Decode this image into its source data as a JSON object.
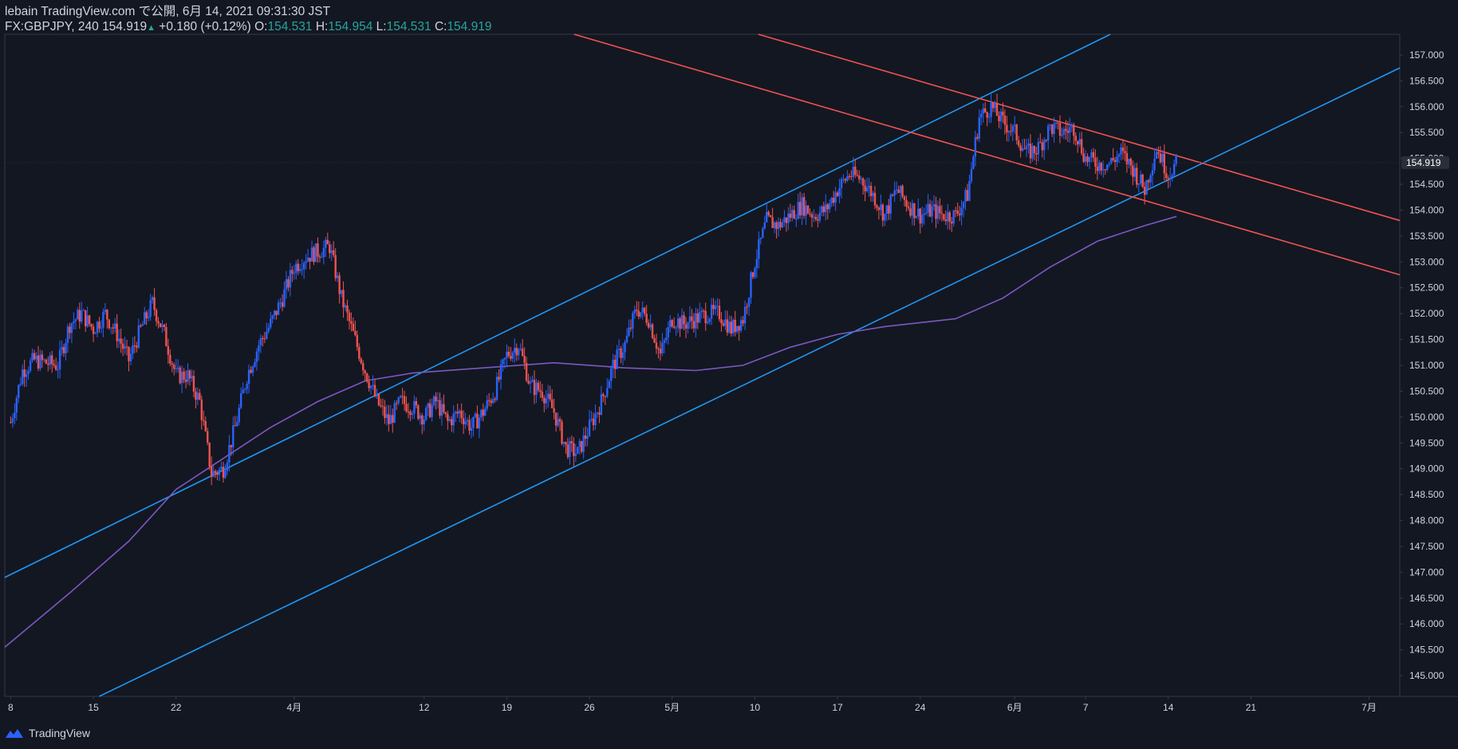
{
  "header": {
    "publisher": "lebain TradingView.com で公開, 6月 14, 2021 09:31:30 JST",
    "symbol": "FX:GBPJPY, 240",
    "last": "154.919",
    "change_arrow": "▲",
    "change": "+0.180 (+0.12%)",
    "o_label": "O:",
    "o_value": "154.531",
    "h_label": "H:",
    "h_value": "154.954",
    "l_label": "L:",
    "l_value": "154.531",
    "c_label": "C:",
    "c_value": "154.919"
  },
  "footer": {
    "brand": "TradingView"
  },
  "colors": {
    "background": "#131722",
    "up": "#2962ff",
    "down": "#ef5350",
    "channel_up": "#2196f3",
    "channel_down": "#f05350",
    "ma": "#7e57c2",
    "text": "#d1d4dc",
    "teal": "#26a69a"
  },
  "chart_data": {
    "type": "candlestick",
    "symbol": "FX:GBPJPY",
    "interval": "240",
    "last_price": 154.919,
    "last_price_label": "154.919",
    "ylim": [
      144.6,
      157.4
    ],
    "y_ticks": [
      "145.000",
      "145.500",
      "146.000",
      "146.500",
      "147.000",
      "147.500",
      "148.000",
      "148.500",
      "149.000",
      "149.500",
      "150.000",
      "150.500",
      "151.000",
      "151.500",
      "152.000",
      "152.500",
      "153.000",
      "153.500",
      "154.000",
      "154.500",
      "155.000",
      "155.500",
      "156.000",
      "156.500",
      "157.000"
    ],
    "x_ticks": [
      {
        "label": "8",
        "day": 0
      },
      {
        "label": "15",
        "day": 7
      },
      {
        "label": "22",
        "day": 14
      },
      {
        "label": "4月",
        "day": 24
      },
      {
        "label": "12",
        "day": 35
      },
      {
        "label": "19",
        "day": 42
      },
      {
        "label": "26",
        "day": 49
      },
      {
        "label": "5月",
        "day": 56
      },
      {
        "label": "10",
        "day": 63
      },
      {
        "label": "17",
        "day": 70
      },
      {
        "label": "24",
        "day": 77
      },
      {
        "label": "6月",
        "day": 85
      },
      {
        "label": "7",
        "day": 91
      },
      {
        "label": "14",
        "day": 98
      },
      {
        "label": "21",
        "day": 105
      },
      {
        "label": "7月",
        "day": 115
      }
    ],
    "x_range_days": [
      -0.5,
      117.6
    ],
    "price_path": [
      [
        0,
        149.9
      ],
      [
        1,
        150.9
      ],
      [
        2,
        151.1
      ],
      [
        4,
        151.0
      ],
      [
        5,
        151.8
      ],
      [
        6,
        152.0
      ],
      [
        7,
        151.7
      ],
      [
        8,
        152.0
      ],
      [
        9,
        151.6
      ],
      [
        10,
        151.1
      ],
      [
        11,
        151.7
      ],
      [
        12,
        152.2
      ],
      [
        13,
        151.6
      ],
      [
        14,
        150.8
      ],
      [
        15,
        150.8
      ],
      [
        16,
        150.3
      ],
      [
        17,
        148.9
      ],
      [
        18,
        149.0
      ],
      [
        19,
        149.8
      ],
      [
        20,
        150.8
      ],
      [
        21,
        151.4
      ],
      [
        22,
        151.8
      ],
      [
        23,
        152.3
      ],
      [
        24,
        152.9
      ],
      [
        25,
        153.1
      ],
      [
        26,
        153.2
      ],
      [
        27,
        153.3
      ],
      [
        28,
        152.3
      ],
      [
        29,
        151.6
      ],
      [
        30,
        150.9
      ],
      [
        31,
        150.3
      ],
      [
        32,
        149.9
      ],
      [
        33,
        150.3
      ],
      [
        34,
        150.2
      ],
      [
        35,
        150.0
      ],
      [
        36,
        150.3
      ],
      [
        37,
        149.9
      ],
      [
        38,
        150.1
      ],
      [
        39,
        149.8
      ],
      [
        40,
        150.1
      ],
      [
        41,
        150.5
      ],
      [
        42,
        151.2
      ],
      [
        43,
        151.4
      ],
      [
        44,
        150.6
      ],
      [
        45,
        150.5
      ],
      [
        46,
        150.1
      ],
      [
        47,
        149.4
      ],
      [
        48,
        149.3
      ],
      [
        49,
        149.8
      ],
      [
        50,
        150.3
      ],
      [
        51,
        151.0
      ],
      [
        52,
        151.4
      ],
      [
        53,
        152.1
      ],
      [
        54,
        151.9
      ],
      [
        55,
        151.2
      ],
      [
        56,
        151.9
      ],
      [
        57,
        151.8
      ],
      [
        58,
        151.9
      ],
      [
        59,
        152.0
      ],
      [
        60,
        152.0
      ],
      [
        61,
        151.7
      ],
      [
        62,
        151.9
      ],
      [
        63,
        153.0
      ],
      [
        64,
        153.8
      ],
      [
        65,
        153.7
      ],
      [
        66,
        153.9
      ],
      [
        67,
        154.1
      ],
      [
        68,
        153.9
      ],
      [
        69,
        154.0
      ],
      [
        70,
        154.4
      ],
      [
        71,
        154.7
      ],
      [
        72,
        154.6
      ],
      [
        73,
        154.3
      ],
      [
        74,
        153.9
      ],
      [
        75,
        154.4
      ],
      [
        76,
        154.1
      ],
      [
        77,
        153.9
      ],
      [
        78,
        154.0
      ],
      [
        79,
        153.9
      ],
      [
        80,
        153.9
      ],
      [
        81,
        154.3
      ],
      [
        82,
        155.8
      ],
      [
        83,
        156.0
      ],
      [
        84,
        155.7
      ],
      [
        85,
        155.5
      ],
      [
        86,
        155.1
      ],
      [
        87,
        155.2
      ],
      [
        88,
        155.6
      ],
      [
        89,
        155.5
      ],
      [
        90,
        155.6
      ],
      [
        91,
        155.0
      ],
      [
        92,
        154.9
      ],
      [
        93,
        154.9
      ],
      [
        94,
        155.1
      ],
      [
        95,
        154.8
      ],
      [
        96,
        154.4
      ],
      [
        97,
        155.2
      ],
      [
        98,
        154.7
      ],
      [
        98.7,
        154.92
      ]
    ],
    "moving_average": [
      [
        -0.5,
        145.55
      ],
      [
        5,
        146.6
      ],
      [
        10,
        147.6
      ],
      [
        14,
        148.6
      ],
      [
        18,
        149.2
      ],
      [
        22,
        149.8
      ],
      [
        26,
        150.3
      ],
      [
        30,
        150.7
      ],
      [
        34,
        150.85
      ],
      [
        40,
        150.95
      ],
      [
        46,
        151.05
      ],
      [
        52,
        150.95
      ],
      [
        58,
        150.9
      ],
      [
        62,
        151.0
      ],
      [
        66,
        151.35
      ],
      [
        70,
        151.6
      ],
      [
        74,
        151.75
      ],
      [
        80,
        151.9
      ],
      [
        84,
        152.3
      ],
      [
        88,
        152.9
      ],
      [
        92,
        153.4
      ],
      [
        96,
        153.7
      ],
      [
        98.7,
        153.88
      ]
    ],
    "trendlines": [
      {
        "name": "blue-channel-upper",
        "color": "blue",
        "p1": [
          -0.5,
          146.9
        ],
        "p2": [
          93.1,
          157.4
        ]
      },
      {
        "name": "blue-channel-lower",
        "color": "blue",
        "p1": [
          7.5,
          144.6
        ],
        "p2": [
          117.6,
          156.75
        ]
      },
      {
        "name": "red-channel-upper",
        "color": "red",
        "p1": [
          63.3,
          157.4
        ],
        "p2": [
          117.6,
          153.8
        ]
      },
      {
        "name": "red-channel-lower",
        "color": "red",
        "p1": [
          47.7,
          157.4
        ],
        "p2": [
          117.6,
          152.75
        ]
      }
    ]
  }
}
